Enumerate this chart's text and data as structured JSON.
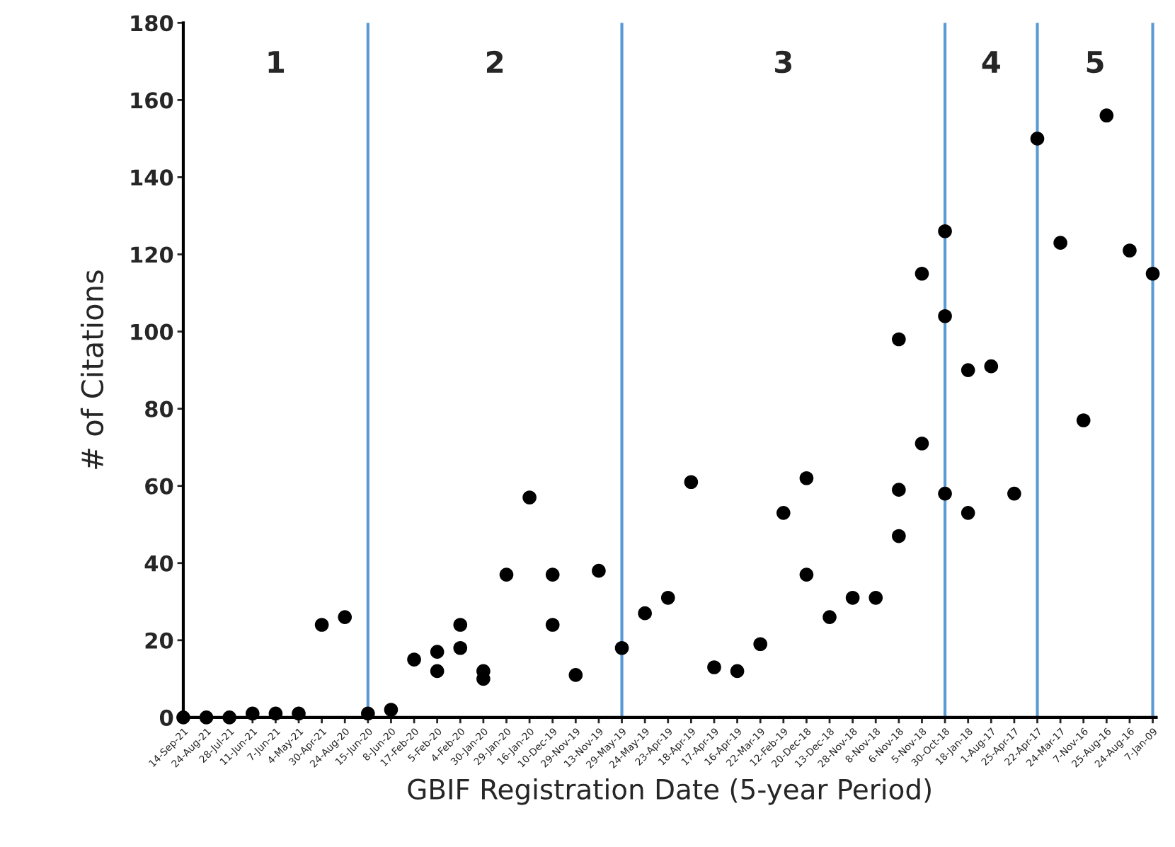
{
  "chart_data": {
    "type": "scatter",
    "xlabel": "GBIF Registration Date (5-year Period)",
    "ylabel": "# of Citations",
    "categories": [
      "14-Sep-21",
      "24-Aug-21",
      "28-Jul-21",
      "11-Jun-21",
      "7-Jun-21",
      "4-May-21",
      "30-Apr-21",
      "24-Aug-20",
      "15-Jun-20",
      "8-Jun-20",
      "17-Feb-20",
      "5-Feb-20",
      "4-Feb-20",
      "30-Jan-20",
      "29-Jan-20",
      "16-Jan-20",
      "10-Dec-19",
      "29-Nov-19",
      "13-Nov-19",
      "29-May-19",
      "24-May-19",
      "23-Apr-19",
      "18-Apr-19",
      "17-Apr-19",
      "16-Apr-19",
      "22-Mar-19",
      "12-Feb-19",
      "20-Dec-18",
      "13-Dec-18",
      "28-Nov-18",
      "8-Nov-18",
      "6-Nov-18",
      "5-Nov-18",
      "30-Oct-18",
      "18-Jan-18",
      "1-Aug-17",
      "25-Apr-17",
      "22-Apr-17",
      "24-Mar-17",
      "7-Nov-16",
      "25-Aug-16",
      "24-Aug-16",
      "7-Jan-09"
    ],
    "series": [
      {
        "color": "#000000",
        "values": [
          0,
          0,
          0,
          1,
          1,
          1,
          24,
          26,
          1,
          2,
          15,
          17,
          24,
          12,
          37,
          57,
          37,
          11,
          38,
          18,
          27,
          31,
          61,
          13,
          12,
          19,
          53,
          62,
          26,
          31,
          31,
          98,
          115,
          126,
          90,
          91,
          58,
          150,
          123,
          77,
          156,
          121,
          115
        ]
      },
      {
        "color": "#000000",
        "values": [
          null,
          null,
          null,
          null,
          null,
          null,
          null,
          null,
          null,
          null,
          null,
          12,
          18,
          10,
          null,
          null,
          24,
          null,
          null,
          null,
          null,
          null,
          null,
          null,
          null,
          null,
          null,
          37,
          null,
          null,
          null,
          59,
          71,
          104,
          53,
          null,
          null,
          null,
          null,
          null,
          null,
          null,
          null
        ]
      },
      {
        "color": "#000000",
        "values": [
          null,
          null,
          null,
          null,
          null,
          null,
          null,
          null,
          null,
          null,
          null,
          null,
          null,
          null,
          null,
          null,
          null,
          null,
          null,
          null,
          null,
          null,
          null,
          null,
          null,
          null,
          null,
          null,
          null,
          null,
          null,
          47,
          null,
          58,
          null,
          null,
          null,
          null,
          null,
          null,
          null,
          null,
          null
        ]
      }
    ],
    "ylim": [
      0,
      180
    ],
    "yticks": [
      0,
      20,
      40,
      60,
      80,
      100,
      120,
      140,
      160,
      180
    ],
    "ref_lines": [
      {
        "axis": "x",
        "value": "15-Jun-20",
        "color": "#5b9bd5"
      },
      {
        "axis": "x",
        "value": "29-May-19",
        "color": "#5b9bd5"
      },
      {
        "axis": "x",
        "value": "30-Oct-18",
        "color": "#5b9bd5"
      },
      {
        "axis": "x",
        "value": "22-Apr-17",
        "color": "#5b9bd5"
      },
      {
        "axis": "x",
        "value": "7-Jan-09",
        "color": "#5b9bd5"
      }
    ],
    "annotations": [
      "1",
      "2",
      "3",
      "4",
      "5"
    ],
    "marker": "circle",
    "grid": false,
    "legend": false
  }
}
